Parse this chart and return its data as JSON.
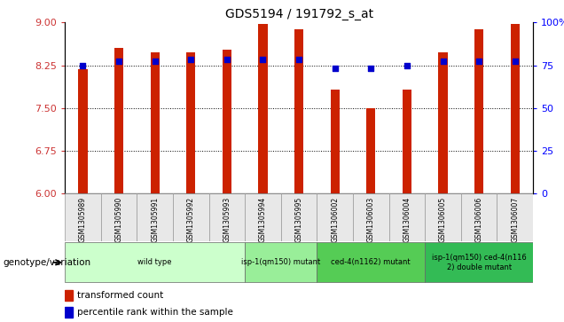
{
  "title": "GDS5194 / 191792_s_at",
  "samples": [
    "GSM1305989",
    "GSM1305990",
    "GSM1305991",
    "GSM1305992",
    "GSM1305993",
    "GSM1305994",
    "GSM1305995",
    "GSM1306002",
    "GSM1306003",
    "GSM1306004",
    "GSM1306005",
    "GSM1306006",
    "GSM1306007"
  ],
  "bar_values": [
    8.18,
    8.55,
    8.48,
    8.48,
    8.52,
    8.97,
    8.88,
    7.82,
    7.5,
    7.82,
    8.48,
    8.88,
    8.97
  ],
  "dot_values": [
    8.25,
    8.32,
    8.32,
    8.35,
    8.35,
    8.35,
    8.35,
    8.2,
    8.2,
    8.25,
    8.32,
    8.32,
    8.32
  ],
  "ylim_left": [
    6,
    9
  ],
  "ylim_right": [
    0,
    100
  ],
  "yticks_left": [
    6,
    6.75,
    7.5,
    8.25,
    9
  ],
  "yticks_right": [
    0,
    25,
    50,
    75,
    100
  ],
  "bar_color": "#CC2200",
  "dot_color": "#0000CC",
  "groups": [
    {
      "label": "wild type",
      "indices": [
        0,
        1,
        2,
        3,
        4
      ],
      "color": "#CCFFCC"
    },
    {
      "label": "isp-1(qm150) mutant",
      "indices": [
        5,
        6
      ],
      "color": "#99EE99"
    },
    {
      "label": "ced-4(n1162) mutant",
      "indices": [
        7,
        8,
        9
      ],
      "color": "#55CC55"
    },
    {
      "label": "isp-1(qm150) ced-4(n116\n2) double mutant",
      "indices": [
        10,
        11,
        12
      ],
      "color": "#33BB55"
    }
  ],
  "bar_width": 0.25,
  "legend_bar_label": "transformed count",
  "legend_dot_label": "percentile rank within the sample",
  "genotype_label": "genotype/variation",
  "bg_color": "#E8E8E8",
  "plot_bg": "#FFFFFF"
}
